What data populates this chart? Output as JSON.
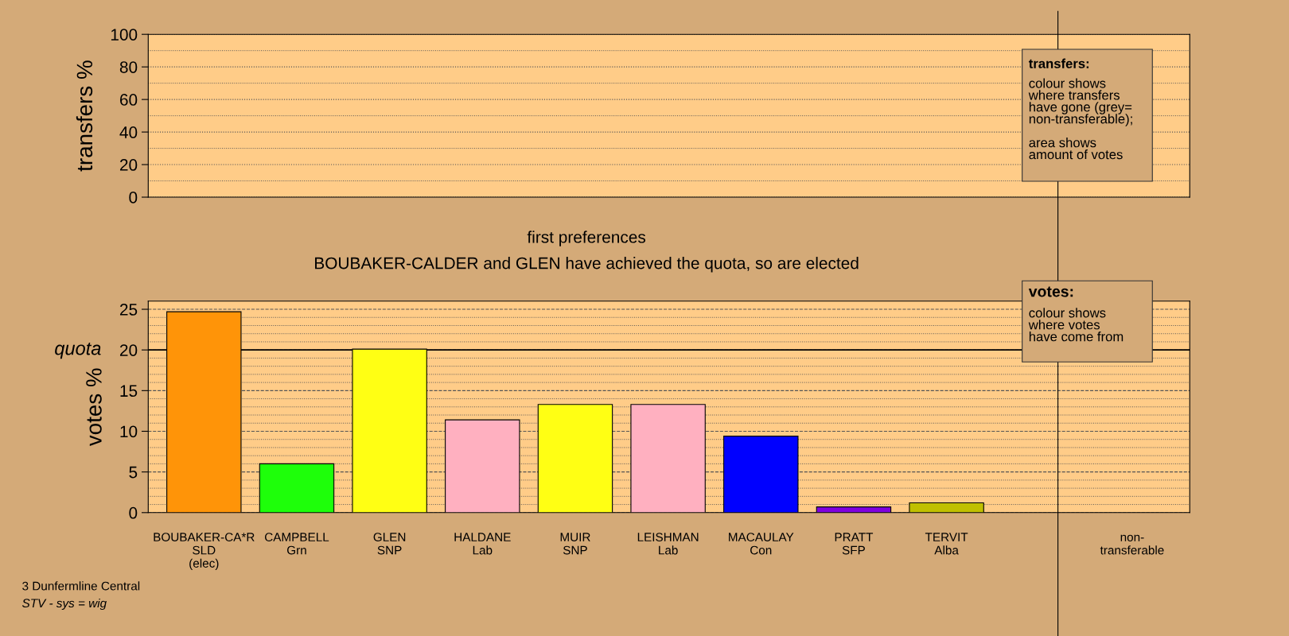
{
  "chart_data": [
    {
      "type": "bar",
      "ylabel": "transfers %",
      "categories": [
        null,
        null,
        null,
        null,
        null,
        null,
        null,
        null,
        null,
        null,
        null
      ],
      "values": [
        null,
        null,
        null,
        null,
        null,
        null,
        null,
        null,
        null,
        null,
        null
      ],
      "ylim": [
        0,
        100
      ],
      "yticks": [
        0,
        20,
        40,
        60,
        80,
        100
      ],
      "grid": true,
      "tick_labels": "y",
      "annotations": [
        "transfers:",
        "colour shows\nwhere transfers\nhave gone (grey=\nnon-transferable);\n\narea shows\namount of votes"
      ]
    },
    {
      "type": "bar",
      "title": "first preferences",
      "subtitle": "BOUBAKER-CALDER and GLEN have achieved the quota, so are elected",
      "ylabel": "votes %",
      "categories": [
        "BOUBAKER-CA*R\nSLD\n(elec)",
        "CAMPBELL\nGrn",
        "GLEN\nSNP",
        "HALDANE\nLab",
        "MUIR\nSNP",
        "LEISHMAN\nLab",
        "MACAULAY\nCon",
        "PRATT\nSFP",
        "TERVIT\nAlba",
        null,
        "non-\ntransferable"
      ],
      "values": [
        24.7,
        6.0,
        20.1,
        11.4,
        13.3,
        13.3,
        9.4,
        0.7,
        1.2,
        null,
        null
      ],
      "colors": [
        "#ff9408",
        "#1eff0a",
        "#ffff14",
        "#ffb0c0",
        "#ffff14",
        "#ffb0c0",
        "#0000ff",
        "#8000e0",
        "#c0c000",
        null,
        null
      ],
      "ylim": [
        0,
        26
      ],
      "yticks": [
        0,
        5,
        10,
        15,
        20,
        25
      ],
      "grid": true,
      "ref_lines": [
        {
          "axis": "y",
          "value": 20,
          "label": "quota",
          "color": "#000000",
          "line_style": "solid"
        }
      ],
      "annotations": [
        "votes:",
        "colour shows\nwhere votes\nhave come from",
        "3 Dunfermline Central",
        "STV - sys = wig"
      ]
    }
  ]
}
